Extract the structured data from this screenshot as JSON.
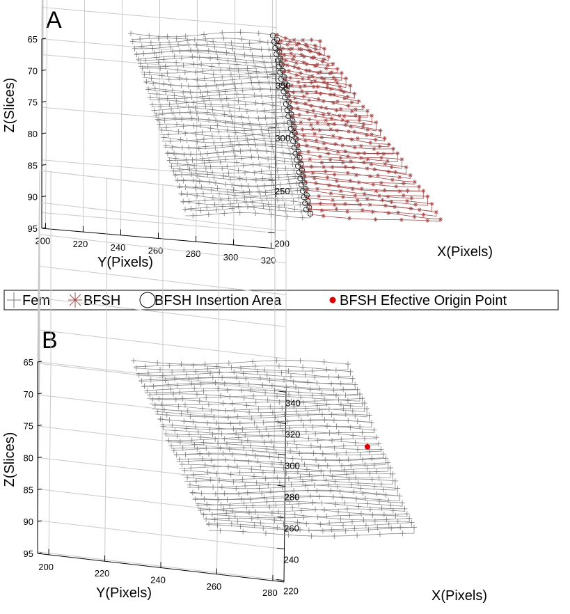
{
  "legend": {
    "entries": [
      {
        "label": "Fem",
        "marker": "plus",
        "color": "#7a7a7a"
      },
      {
        "label": "BFSH",
        "marker": "asterisk",
        "color": "#a04848"
      },
      {
        "label": "BFSH Insertion Area",
        "marker": "circle",
        "color": "#000000"
      },
      {
        "label": "BFSH Efective Origin Point",
        "marker": "dot",
        "color": "#dd0000"
      }
    ]
  },
  "chart_data": [
    {
      "panel_label": "A",
      "type": "line3d",
      "title": "",
      "xlabel": "X(Pixels)",
      "ylabel": "Y(Pixels)",
      "zlabel": "Z(Slices)",
      "z_reversed": true,
      "grid": true,
      "zlim": [
        65,
        95
      ],
      "yticks": [
        "200",
        "220",
        "240",
        "260",
        "280",
        "300",
        "320"
      ],
      "xticks": [
        "200",
        "250",
        "300",
        "350"
      ],
      "zticks": [
        "65",
        "70",
        "75",
        "80",
        "85",
        "90",
        "95"
      ],
      "slices": {
        "z_start": 64,
        "z_end": 92,
        "step": 1
      },
      "fem_contour": {
        "color": "#8c8c8c",
        "marker": "plus"
      },
      "bfsh_contour": {
        "color": "#a04848",
        "marker": "asterisk"
      },
      "insertion_area": {
        "color": "#000000",
        "marker": "circle"
      }
    },
    {
      "panel_label": "B",
      "type": "line3d",
      "title": "",
      "xlabel": "X(Pixels)",
      "ylabel": "Y(Pixels)",
      "zlabel": "Z(Slices)",
      "z_reversed": true,
      "grid": true,
      "zlim": [
        65,
        95
      ],
      "yticks": [
        "200",
        "220",
        "240",
        "260",
        "280"
      ],
      "xticks": [
        "220",
        "240",
        "260",
        "280",
        "300",
        "320",
        "340"
      ],
      "zticks": [
        "65",
        "70",
        "75",
        "80",
        "85",
        "90",
        "95"
      ],
      "slices": {
        "z_start": 64,
        "z_end": 92,
        "step": 1
      },
      "fem_contour": {
        "color": "#8c8c8c",
        "marker": "plus"
      },
      "origin_point": {
        "z": 79.5,
        "color": "#dd0000"
      }
    }
  ]
}
